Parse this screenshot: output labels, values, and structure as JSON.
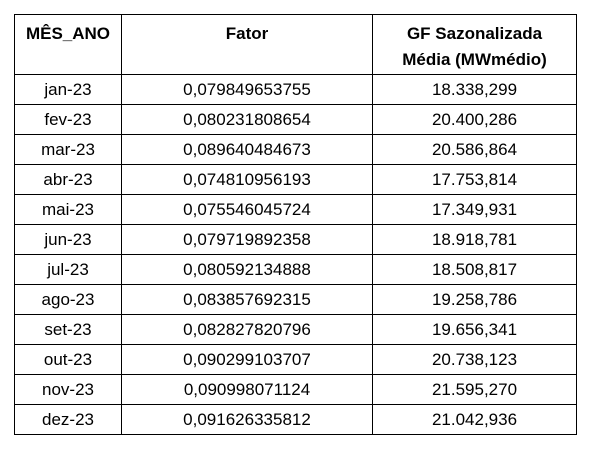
{
  "table": {
    "headers": [
      "MÊS_ANO",
      "Fator",
      "GF Sazonalizada\nMédia (MWmédio)"
    ],
    "rows": [
      [
        "jan-23",
        "0,079849653755",
        "18.338,299"
      ],
      [
        "fev-23",
        "0,080231808654",
        "20.400,286"
      ],
      [
        "mar-23",
        "0,089640484673",
        "20.586,864"
      ],
      [
        "abr-23",
        "0,074810956193",
        "17.753,814"
      ],
      [
        "mai-23",
        "0,075546045724",
        "17.349,931"
      ],
      [
        "jun-23",
        "0,079719892358",
        "18.918,781"
      ],
      [
        "jul-23",
        "0,080592134888",
        "18.508,817"
      ],
      [
        "ago-23",
        "0,083857692315",
        "19.258,786"
      ],
      [
        "set-23",
        "0,082827820796",
        "19.656,341"
      ],
      [
        "out-23",
        "0,090299103707",
        "20.738,123"
      ],
      [
        "nov-23",
        "0,090998071124",
        "21.595,270"
      ],
      [
        "dez-23",
        "0,091626335812",
        "21.042,936"
      ]
    ]
  }
}
